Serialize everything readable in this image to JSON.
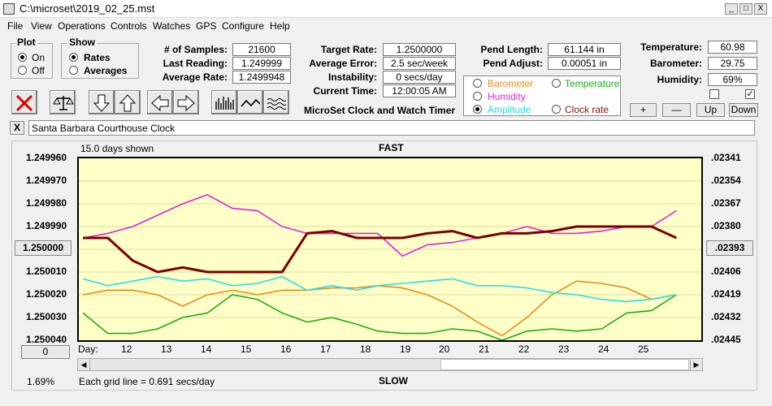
{
  "window": {
    "title": "C:\\microset\\2019_02_25.mst",
    "min": "_",
    "max": "□",
    "close": "X"
  },
  "menu": [
    "File",
    "View",
    "Operations",
    "Controls",
    "Watches",
    "GPS",
    "Configure",
    "Help"
  ],
  "plot_group": {
    "title": "Plot",
    "on": "On",
    "off": "Off"
  },
  "show_group": {
    "title": "Show",
    "rates": "Rates",
    "averages": "Averages"
  },
  "stats": {
    "samples_label": "# of Samples:",
    "samples": "21600",
    "last_label": "Last Reading:",
    "last": "1.249999",
    "avg_rate_label": "Average Rate:",
    "avg_rate": "1.2499948",
    "target_label": "Target Rate:",
    "target": "1.2500000",
    "avg_err_label": "Average Error:",
    "avg_err": "2.5 sec/week",
    "instab_label": "Instability:",
    "instab": "0 secs/day",
    "time_label": "Current Time:",
    "time": "12:00:05 AM",
    "pend_len_label": "Pend Length:",
    "pend_len": "61.144 in",
    "pend_adj_label": "Pend Adjust:",
    "pend_adj": "0.00051 in",
    "temp_label": "Temperature:",
    "temp": "60.98",
    "baro_label": "Barometer:",
    "baro": "29.75",
    "hum_label": "Humidity:",
    "hum": "69%"
  },
  "app_caption": "MicroSet Clock and Watch Timer",
  "legend": {
    "barometer": "Barometer",
    "temperature": "Temperature",
    "humidity": "Humidity",
    "amplitude": "Amplitude",
    "clock_rate": "Clock rate"
  },
  "colors": {
    "barometer": "#e88a1a",
    "temperature": "#1aaa1a",
    "humidity": "#dd22dd",
    "amplitude": "#22e0e8",
    "clock_rate": "#7a0000"
  },
  "scale_buttons": {
    "plus": "+",
    "minus": "—",
    "up": "Up",
    "down": "Down"
  },
  "clock_name": "Santa Barbara Courthouse Clock",
  "close_x": "X",
  "chart": {
    "days_shown": "15.0 days shown",
    "fast": "FAST",
    "slow": "SLOW",
    "left_ticks": [
      "1.249960",
      "1.249970",
      "1.249980",
      "1.249990",
      "1.250000",
      "1.250010",
      "1.250020",
      "1.250030",
      "1.250040"
    ],
    "right_ticks": [
      ".02341",
      ".02354",
      ".02367",
      ".02380",
      ".02393",
      ".02406",
      ".02419",
      ".02432",
      ".02445"
    ],
    "day_label": "Day:",
    "days": [
      "12",
      "13",
      "14",
      "15",
      "16",
      "17",
      "18",
      "19",
      "20",
      "21",
      "22",
      "23",
      "24",
      "25"
    ],
    "zero_button": "0",
    "percent": "1.69%",
    "grid_note": "Each grid line = 0.691 secs/day"
  },
  "chart_data": {
    "type": "line",
    "title": "",
    "xlabel": "Day:",
    "ylabel": "",
    "xlim": [
      11.2,
      26.2
    ],
    "ylim": [
      1.24996,
      1.25004
    ],
    "y_inverted": true,
    "x": [
      11.3,
      11.9,
      12.5,
      13.1,
      13.7,
      14.3,
      14.9,
      15.5,
      16.1,
      16.7,
      17.3,
      17.9,
      18.4,
      19.0,
      19.6,
      20.2,
      20.8,
      21.4,
      22.0,
      22.6,
      23.2,
      23.8,
      24.4,
      25.0,
      25.6
    ],
    "series": [
      {
        "name": "Clock rate",
        "values": [
          1.249995,
          1.249995,
          1.250005,
          1.25001,
          1.250008,
          1.25001,
          1.25001,
          1.25001,
          1.25001,
          1.249993,
          1.249992,
          1.249995,
          1.249995,
          1.249995,
          1.249993,
          1.249992,
          1.249995,
          1.249993,
          1.249993,
          1.249992,
          1.24999,
          1.24999,
          1.24999,
          1.24999,
          1.249995
        ]
      },
      {
        "name": "Humidity",
        "values": [
          1.249995,
          1.249993,
          1.24999,
          1.249985,
          1.24998,
          1.249976,
          1.249982,
          1.249983,
          1.24999,
          1.249993,
          1.249993,
          1.249993,
          1.249993,
          1.250003,
          1.249998,
          1.249997,
          1.249995,
          1.249993,
          1.24999,
          1.249993,
          1.249993,
          1.249992,
          1.24999,
          1.24999,
          1.249983
        ]
      },
      {
        "name": "Amplitude",
        "values": [
          1.250013,
          1.250016,
          1.250014,
          1.250012,
          1.250014,
          1.250013,
          1.250016,
          1.250015,
          1.250012,
          1.250018,
          1.250016,
          1.250018,
          1.250016,
          1.250015,
          1.250014,
          1.250013,
          1.250016,
          1.250016,
          1.250017,
          1.250019,
          1.25002,
          1.250022,
          1.250023,
          1.250022,
          1.25002
        ]
      },
      {
        "name": "Barometer",
        "values": [
          1.25002,
          1.250018,
          1.250018,
          1.25002,
          1.250025,
          1.25002,
          1.250018,
          1.25002,
          1.250018,
          1.250018,
          1.250017,
          1.250017,
          1.250016,
          1.250017,
          1.25002,
          1.250025,
          1.250032,
          1.250038,
          1.25003,
          1.25002,
          1.250014,
          1.250015,
          1.250017,
          1.250022,
          1.25002
        ]
      },
      {
        "name": "Temperature",
        "values": [
          1.250028,
          1.250037,
          1.250037,
          1.250035,
          1.25003,
          1.250028,
          1.25002,
          1.250022,
          1.250028,
          1.250032,
          1.25003,
          1.250033,
          1.250036,
          1.250037,
          1.250037,
          1.250035,
          1.250036,
          1.25004,
          1.250036,
          1.250035,
          1.250036,
          1.250035,
          1.250028,
          1.250027,
          1.25002
        ]
      }
    ]
  }
}
